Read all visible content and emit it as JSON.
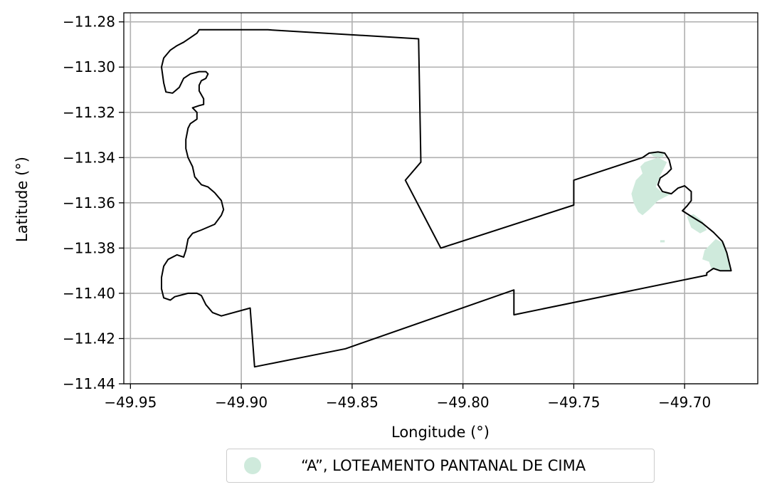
{
  "chart_data": {
    "type": "map",
    "xlabel": "Longitude (°)",
    "ylabel": "Latitude (°)",
    "xlim": [
      -49.953,
      -49.667
    ],
    "ylim": [
      -11.44,
      -11.276
    ],
    "x_ticks": [
      -49.95,
      -49.9,
      -49.85,
      -49.8,
      -49.75,
      -49.7
    ],
    "y_ticks": [
      -11.28,
      -11.3,
      -11.32,
      -11.34,
      -11.36,
      -11.38,
      -11.4,
      -11.42,
      -11.44
    ],
    "x_tick_labels": [
      "−49.95",
      "−49.90",
      "−49.85",
      "−49.80",
      "−49.75",
      "−49.70"
    ],
    "y_tick_labels": [
      "−11.28",
      "−11.30",
      "−11.32",
      "−11.34",
      "−11.36",
      "−11.38",
      "−11.40",
      "−11.42",
      "−11.44"
    ],
    "grid": true,
    "legend_position": "bottom-center, outside",
    "boundary_color": "#000000",
    "area_color": "#cfeadc",
    "boundary": [
      [
        -49.919,
        -11.2835
      ],
      [
        -49.888,
        -11.2835
      ],
      [
        -49.82,
        -11.2875
      ],
      [
        -49.819,
        -11.342
      ],
      [
        -49.826,
        -11.35
      ],
      [
        -49.81,
        -11.38
      ],
      [
        -49.75,
        -11.361
      ],
      [
        -49.75,
        -11.35
      ],
      [
        -49.719,
        -11.34
      ],
      [
        -49.716,
        -11.338
      ],
      [
        -49.712,
        -11.3375
      ],
      [
        -49.709,
        -11.338
      ],
      [
        -49.707,
        -11.341
      ],
      [
        -49.706,
        -11.345
      ],
      [
        -49.708,
        -11.347
      ],
      [
        -49.711,
        -11.349
      ],
      [
        -49.712,
        -11.352
      ],
      [
        -49.71,
        -11.355
      ],
      [
        -49.706,
        -11.356
      ],
      [
        -49.703,
        -11.3535
      ],
      [
        -49.7,
        -11.3525
      ],
      [
        -49.697,
        -11.355
      ],
      [
        -49.697,
        -11.359
      ],
      [
        -49.699,
        -11.3615
      ],
      [
        -49.701,
        -11.3635
      ],
      [
        -49.697,
        -11.366
      ],
      [
        -49.692,
        -11.369
      ],
      [
        -49.687,
        -11.373
      ],
      [
        -49.683,
        -11.377
      ],
      [
        -49.681,
        -11.382
      ],
      [
        -49.68,
        -11.386
      ],
      [
        -49.679,
        -11.39
      ],
      [
        -49.684,
        -11.39
      ],
      [
        -49.687,
        -11.389
      ],
      [
        -49.69,
        -11.391
      ],
      [
        -49.69,
        -11.392
      ],
      [
        -49.777,
        -11.4095
      ],
      [
        -49.777,
        -11.3985
      ],
      [
        -49.853,
        -11.4245
      ],
      [
        -49.894,
        -11.4325
      ],
      [
        -49.896,
        -11.4065
      ],
      [
        -49.909,
        -11.41
      ],
      [
        -49.913,
        -11.4085
      ],
      [
        -49.916,
        -11.405
      ],
      [
        -49.918,
        -11.401
      ],
      [
        -49.92,
        -11.4
      ],
      [
        -49.924,
        -11.4
      ],
      [
        -49.93,
        -11.4015
      ],
      [
        -49.932,
        -11.403
      ],
      [
        -49.935,
        -11.402
      ],
      [
        -49.936,
        -11.398
      ],
      [
        -49.936,
        -11.393
      ],
      [
        -49.935,
        -11.388
      ],
      [
        -49.933,
        -11.385
      ],
      [
        -49.929,
        -11.383
      ],
      [
        -49.926,
        -11.384
      ],
      [
        -49.925,
        -11.381
      ],
      [
        -49.924,
        -11.376
      ],
      [
        -49.922,
        -11.3735
      ],
      [
        -49.918,
        -11.372
      ],
      [
        -49.912,
        -11.3695
      ],
      [
        -49.909,
        -11.3655
      ],
      [
        -49.908,
        -11.363
      ],
      [
        -49.909,
        -11.359
      ],
      [
        -49.912,
        -11.3555
      ],
      [
        -49.915,
        -11.353
      ],
      [
        -49.918,
        -11.352
      ],
      [
        -49.921,
        -11.3485
      ],
      [
        -49.922,
        -11.344
      ],
      [
        -49.924,
        -11.34
      ],
      [
        -49.925,
        -11.336
      ],
      [
        -49.925,
        -11.332
      ],
      [
        -49.924,
        -11.327
      ],
      [
        -49.923,
        -11.325
      ],
      [
        -49.92,
        -11.323
      ],
      [
        -49.92,
        -11.32
      ],
      [
        -49.922,
        -11.318
      ],
      [
        -49.919,
        -11.317
      ],
      [
        -49.917,
        -11.3165
      ],
      [
        -49.917,
        -11.314
      ],
      [
        -49.919,
        -11.3105
      ],
      [
        -49.919,
        -11.308
      ],
      [
        -49.918,
        -11.306
      ],
      [
        -49.916,
        -11.305
      ],
      [
        -49.915,
        -11.303
      ],
      [
        -49.916,
        -11.302
      ],
      [
        -49.919,
        -11.302
      ],
      [
        -49.923,
        -11.303
      ],
      [
        -49.926,
        -11.305
      ],
      [
        -49.928,
        -11.309
      ],
      [
        -49.931,
        -11.3115
      ],
      [
        -49.934,
        -11.311
      ],
      [
        -49.935,
        -11.307
      ],
      [
        -49.936,
        -11.3
      ],
      [
        -49.935,
        -11.296
      ],
      [
        -49.932,
        -11.2925
      ],
      [
        -49.929,
        -11.2905
      ],
      [
        -49.926,
        -11.289
      ],
      [
        -49.923,
        -11.287
      ],
      [
        -49.92,
        -11.285
      ],
      [
        -49.919,
        -11.2835
      ]
    ],
    "areas": [
      {
        "name": "“A”, LOTEAMENTO PANTANAL DE CIMA",
        "polygons": [
          [
            [
              -49.718,
              -11.342
            ],
            [
              -49.712,
              -11.34
            ],
            [
              -49.708,
              -11.342
            ],
            [
              -49.711,
              -11.348
            ],
            [
              -49.713,
              -11.353
            ],
            [
              -49.71,
              -11.3555
            ],
            [
              -49.706,
              -11.356
            ],
            [
              -49.712,
              -11.359
            ],
            [
              -49.716,
              -11.363
            ],
            [
              -49.719,
              -11.3655
            ],
            [
              -49.721,
              -11.364
            ],
            [
              -49.723,
              -11.36
            ],
            [
              -49.724,
              -11.356
            ],
            [
              -49.722,
              -11.35
            ],
            [
              -49.719,
              -11.347
            ],
            [
              -49.72,
              -11.344
            ]
          ],
          [
            [
              -49.716,
              -11.338
            ],
            [
              -49.712,
              -11.3375
            ],
            [
              -49.709,
              -11.338
            ],
            [
              -49.71,
              -11.34
            ],
            [
              -49.714,
              -11.3395
            ]
          ],
          [
            [
              -49.699,
              -11.366
            ],
            [
              -49.696,
              -11.365
            ],
            [
              -49.692,
              -11.368
            ],
            [
              -49.69,
              -11.372
            ],
            [
              -49.693,
              -11.3735
            ],
            [
              -49.697,
              -11.371
            ]
          ],
          [
            [
              -49.686,
              -11.376
            ],
            [
              -49.682,
              -11.378
            ],
            [
              -49.68,
              -11.386
            ],
            [
              -49.679,
              -11.39
            ],
            [
              -49.684,
              -11.39
            ],
            [
              -49.688,
              -11.389
            ],
            [
              -49.689,
              -11.386
            ],
            [
              -49.692,
              -11.385
            ],
            [
              -49.691,
              -11.381
            ]
          ],
          [
            [
              -49.711,
              -11.3765
            ],
            [
              -49.709,
              -11.3765
            ],
            [
              -49.709,
              -11.3775
            ],
            [
              -49.711,
              -11.3775
            ]
          ]
        ]
      }
    ]
  },
  "legend": {
    "items": [
      {
        "label": "“A”, LOTEAMENTO PANTANAL DE CIMA",
        "color": "#cfeadc"
      }
    ]
  }
}
